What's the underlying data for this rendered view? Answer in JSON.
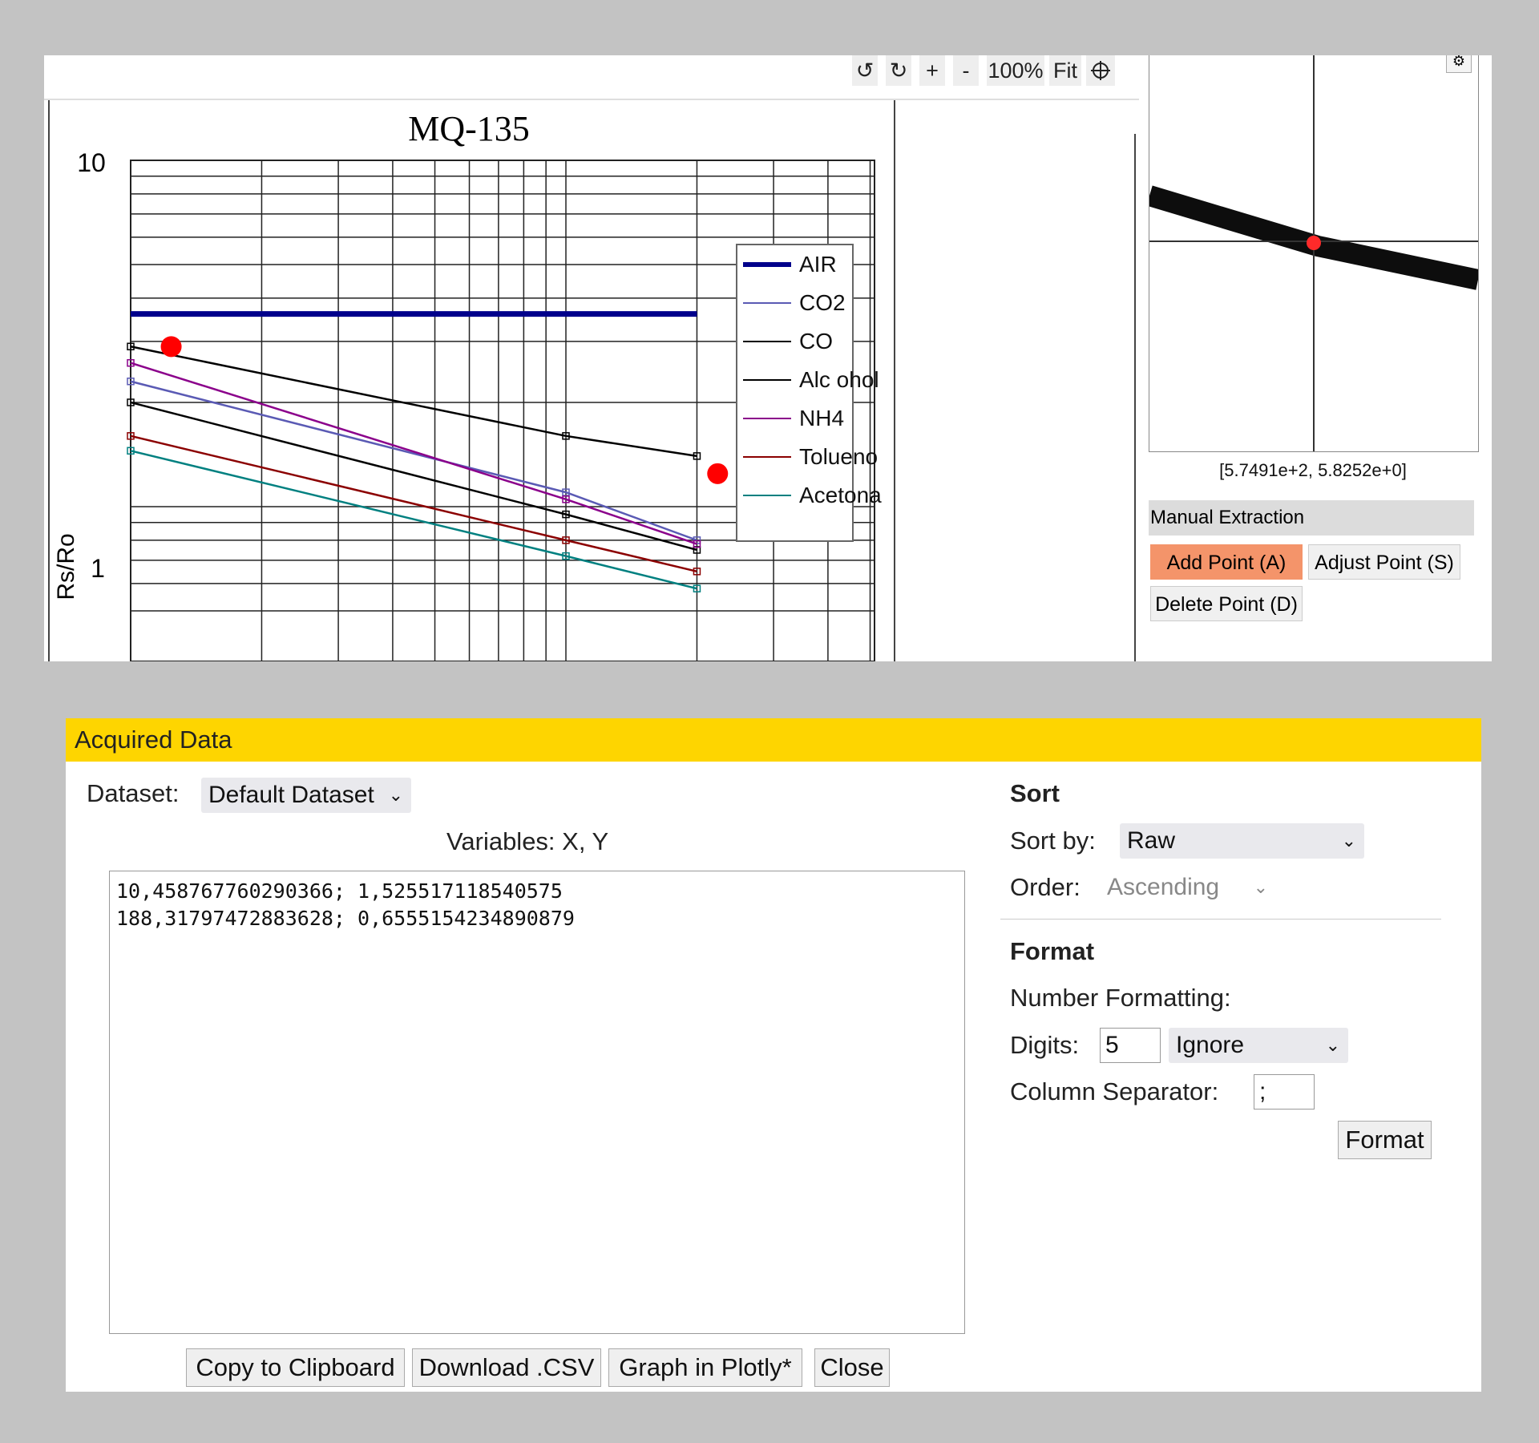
{
  "toolbar": {
    "rotate_ccw_label": "↺",
    "rotate_cw_label": "↻",
    "zoom_in_label": "+",
    "zoom_out_label": "-",
    "zoom_level": "100%",
    "fit_label": "Fit",
    "crosshair_icon": "crosshair-icon"
  },
  "chart_data": {
    "type": "line",
    "title": "MQ-135",
    "ylabel": "Rs/Ro",
    "xlabel": "",
    "y_ticks": [
      "10",
      "1"
    ],
    "yscale": "log",
    "xscale": "log",
    "series": [
      {
        "name": "AIR",
        "color": "#00008b",
        "x": [
          10,
          200
        ],
        "y": [
          3.6,
          3.6
        ]
      },
      {
        "name": "CO2",
        "color": "#5a5ab4",
        "x": [
          10,
          100,
          200
        ],
        "y": [
          2.3,
          1.1,
          0.8
        ]
      },
      {
        "name": "CO",
        "color": "#000000",
        "x": [
          10,
          100,
          200
        ],
        "y": [
          2.9,
          1.6,
          1.4
        ]
      },
      {
        "name": "Alc ohol",
        "color": "#000000",
        "x": [
          10,
          100,
          200
        ],
        "y": [
          2.0,
          0.95,
          0.75
        ]
      },
      {
        "name": "NH4",
        "color": "#8b008b",
        "x": [
          10,
          100,
          200
        ],
        "y": [
          2.6,
          1.05,
          0.78
        ]
      },
      {
        "name": "Tolueno",
        "color": "#8b0000",
        "x": [
          10,
          100,
          200
        ],
        "y": [
          1.6,
          0.8,
          0.65
        ]
      },
      {
        "name": "Acetona",
        "color": "#008080",
        "x": [
          10,
          100,
          200
        ],
        "y": [
          1.45,
          0.72,
          0.58
        ]
      }
    ],
    "ylim": [
      0.5,
      10
    ],
    "xlim": [
      10,
      1000
    ],
    "grid": true,
    "legend": "right",
    "acquired_points": [
      {
        "x": 10.458767760290366,
        "y": 1.525517118540575
      },
      {
        "x": 188.31797472883628,
        "y": 0.6555154234890879
      }
    ]
  },
  "magnifier": {
    "settings_icon": "gear-icon",
    "coords": "[5.7491e+2, 5.8252e+0]"
  },
  "manual_extraction": {
    "title": "Manual Extraction",
    "add_point": "Add Point (A)",
    "adjust_point": "Adjust Point (S)",
    "delete_point": "Delete Point (D)"
  },
  "acquired_data": {
    "title": "Acquired Data",
    "dataset_label": "Dataset:",
    "dataset_value": "Default Dataset",
    "variables": "Variables: X, Y",
    "rows": [
      "10,458767760290366; 1,525517118540575",
      "188,31797472883628; 0,6555154234890879"
    ],
    "buttons": {
      "copy": "Copy to Clipboard",
      "download": "Download .CSV",
      "plotly": "Graph in Plotly*",
      "close": "Close"
    },
    "sort": {
      "heading": "Sort",
      "sort_by_label": "Sort by:",
      "sort_by_value": "Raw",
      "order_label": "Order:",
      "order_value": "Ascending"
    },
    "format": {
      "heading": "Format",
      "number_formatting_label": "Number Formatting:",
      "digits_label": "Digits:",
      "digits_value": "5",
      "digits_mode": "Ignore",
      "column_separator_label": "Column Separator:",
      "column_separator_value": ";",
      "format_button": "Format"
    }
  }
}
